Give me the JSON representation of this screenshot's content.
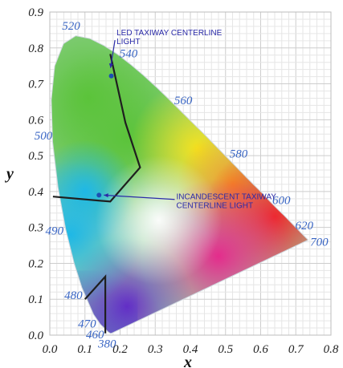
{
  "chart_data": {
    "type": "chromaticity-diagram",
    "xlabel": "x",
    "ylabel": "y",
    "xlim": [
      0.0,
      0.8
    ],
    "ylim": [
      0.0,
      0.9
    ],
    "grid": true,
    "x_ticks": [
      "0.0",
      "0.1",
      "0.2",
      "0.3",
      "0.4",
      "0.5",
      "0.6",
      "0.7",
      "0.8"
    ],
    "y_ticks": [
      "0.0",
      "0.1",
      "0.2",
      "0.3",
      "0.4",
      "0.5",
      "0.6",
      "0.7",
      "0.8",
      "0.9"
    ],
    "spectral_locus": [
      [
        0.175,
        0.005
      ],
      [
        0.172,
        0.005
      ],
      [
        0.166,
        0.009
      ],
      [
        0.144,
        0.03
      ],
      [
        0.124,
        0.058
      ],
      [
        0.091,
        0.133
      ],
      [
        0.069,
        0.201
      ],
      [
        0.045,
        0.295
      ],
      [
        0.023,
        0.413
      ],
      [
        0.008,
        0.538
      ],
      [
        0.004,
        0.655
      ],
      [
        0.014,
        0.75
      ],
      [
        0.039,
        0.812
      ],
      [
        0.074,
        0.834
      ],
      [
        0.114,
        0.826
      ],
      [
        0.155,
        0.806
      ],
      [
        0.193,
        0.782
      ],
      [
        0.23,
        0.754
      ],
      [
        0.266,
        0.724
      ],
      [
        0.302,
        0.692
      ],
      [
        0.337,
        0.659
      ],
      [
        0.373,
        0.624
      ],
      [
        0.409,
        0.589
      ],
      [
        0.444,
        0.555
      ],
      [
        0.479,
        0.52
      ],
      [
        0.512,
        0.487
      ],
      [
        0.545,
        0.454
      ],
      [
        0.575,
        0.424
      ],
      [
        0.603,
        0.397
      ],
      [
        0.627,
        0.372
      ],
      [
        0.648,
        0.351
      ],
      [
        0.666,
        0.334
      ],
      [
        0.68,
        0.32
      ],
      [
        0.692,
        0.308
      ],
      [
        0.701,
        0.299
      ],
      [
        0.708,
        0.292
      ],
      [
        0.713,
        0.287
      ],
      [
        0.719,
        0.281
      ],
      [
        0.725,
        0.275
      ],
      [
        0.735,
        0.265
      ]
    ],
    "wavelength_labels": [
      {
        "text": "520",
        "x": 0.074,
        "y": 0.834
      },
      {
        "text": "540",
        "x": 0.23,
        "y": 0.754
      },
      {
        "text": "560",
        "x": 0.373,
        "y": 0.624
      },
      {
        "text": "580",
        "x": 0.512,
        "y": 0.487
      },
      {
        "text": "600",
        "x": 0.627,
        "y": 0.372
      },
      {
        "text": "620",
        "x": 0.692,
        "y": 0.308
      },
      {
        "text": "700",
        "x": 0.735,
        "y": 0.265
      },
      {
        "text": "500",
        "x": 0.008,
        "y": 0.538
      },
      {
        "text": "490",
        "x": 0.045,
        "y": 0.295
      },
      {
        "text": "480",
        "x": 0.091,
        "y": 0.133
      },
      {
        "text": "470",
        "x": 0.124,
        "y": 0.058
      },
      {
        "text": "460",
        "x": 0.144,
        "y": 0.03
      },
      {
        "text": "380",
        "x": 0.175,
        "y": 0.005
      }
    ],
    "boundaries": [
      {
        "name": "green",
        "points": [
          [
            0.172,
            0.783
          ],
          [
            0.215,
            0.592
          ],
          [
            0.257,
            0.467
          ],
          [
            0.172,
            0.372
          ],
          [
            0.009,
            0.386
          ]
        ]
      },
      {
        "name": "blue",
        "points": [
          [
            0.1,
            0.1
          ],
          [
            0.158,
            0.163
          ],
          [
            0.158,
            0.005
          ]
        ]
      }
    ],
    "points": [
      {
        "label": "LED TAXIWAY CENTERLINE LIGHT",
        "x": 0.175,
        "y": 0.722,
        "label_x": 0.19,
        "label_y": 0.835
      },
      {
        "label": "INCANDESCENT TAXIWAY CENTERLINE LIGHT",
        "x": 0.14,
        "y": 0.39,
        "label_x": 0.36,
        "label_y": 0.378
      }
    ],
    "colors": {
      "boundary": "#1f1f1f",
      "point": "#1c4fb4",
      "annotation": "#2a2aa8",
      "wavelength": "#3a66c4"
    }
  }
}
